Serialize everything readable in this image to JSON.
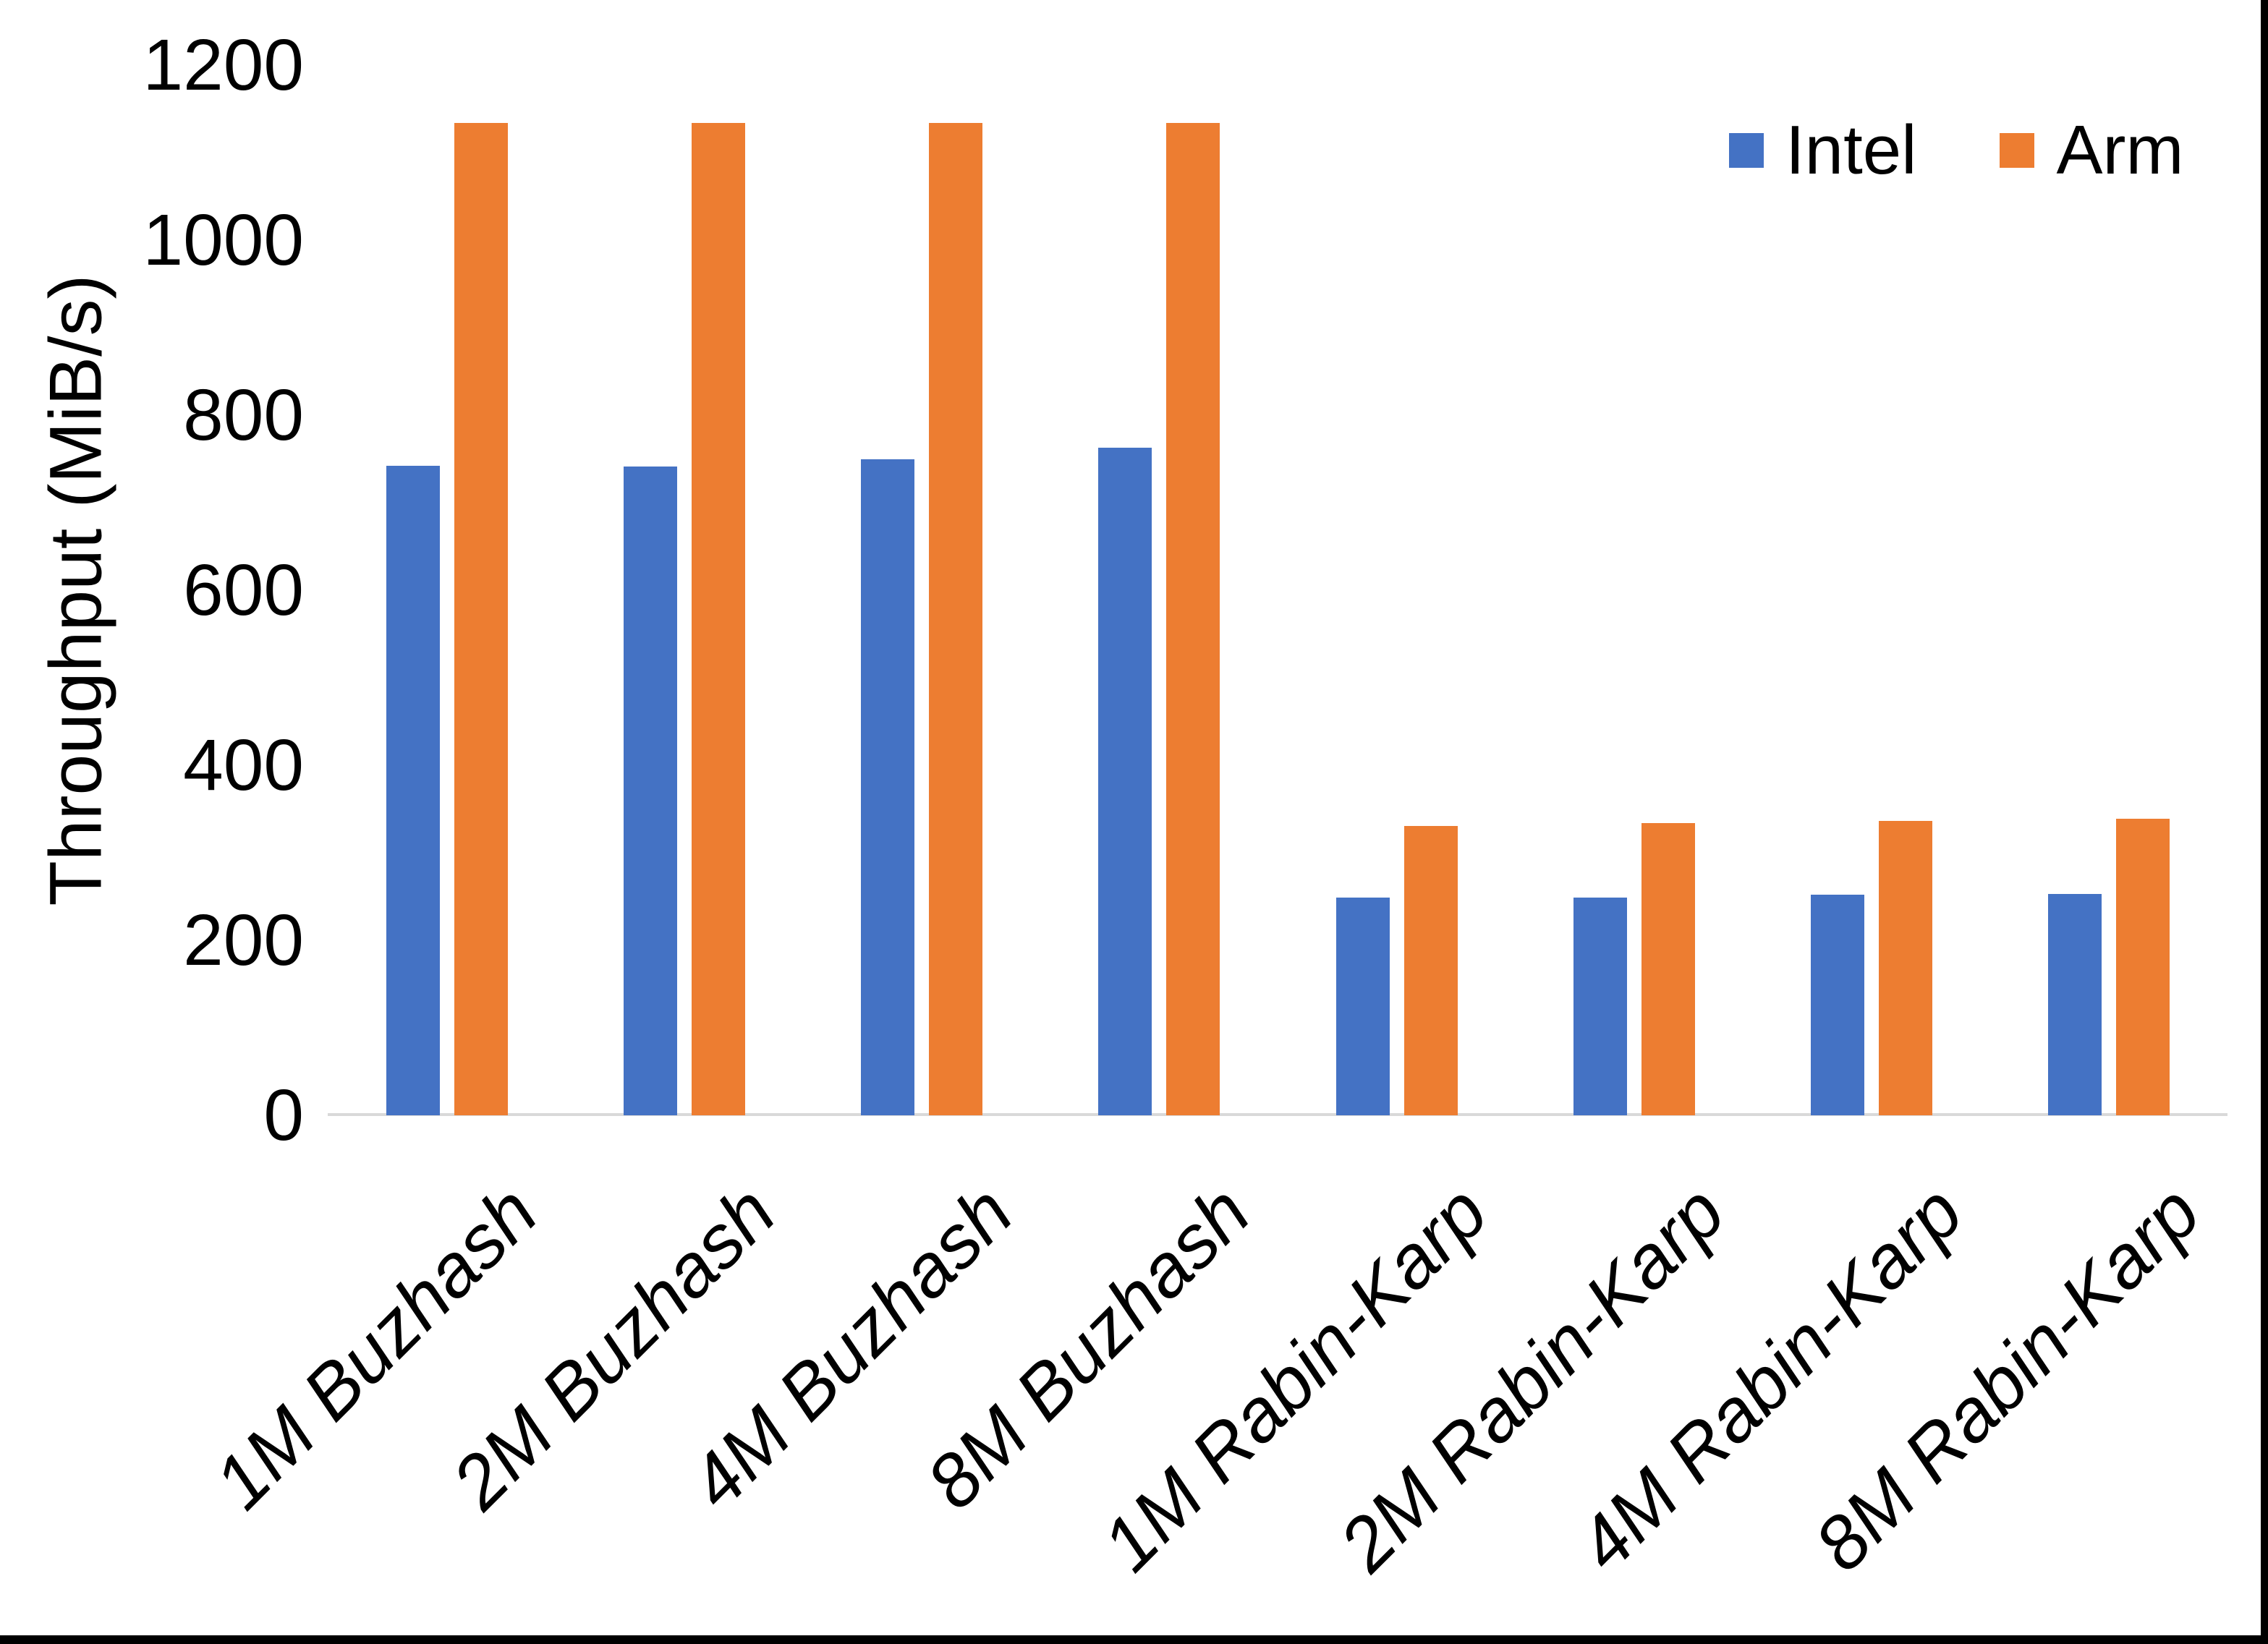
{
  "chart_data": {
    "type": "bar",
    "title": "",
    "xlabel": "",
    "ylabel": "Throughput (MiB/s)",
    "ylim": [
      0,
      1200
    ],
    "ytick_interval": 200,
    "yticks": [
      0,
      200,
      400,
      600,
      800,
      1000,
      1200
    ],
    "grid": "off",
    "legend_position": "top-right",
    "categories": [
      "1M Buzhash",
      "2M Buzhash",
      "4M Buzhash",
      "8M Buzhash",
      "1M Rabin-Karp",
      "2M Rabin-Karp",
      "4M Rabin-Karp",
      "8M Rabin-Karp"
    ],
    "series": [
      {
        "name": "Intel",
        "color": "#4472C4",
        "values": [
          742,
          741,
          750,
          763,
          249,
          249,
          252,
          253
        ]
      },
      {
        "name": "Arm",
        "color": "#ED7D31",
        "values": [
          1134,
          1134,
          1134,
          1134,
          331,
          334,
          336,
          339
        ]
      }
    ]
  },
  "axis": {
    "y_title": "Throughput (MiB/s)",
    "y_tick_labels": [
      "0",
      "200",
      "400",
      "600",
      "800",
      "1000",
      "1200"
    ]
  },
  "legend": {
    "items": [
      {
        "label": "Intel",
        "color": "#4472C4"
      },
      {
        "label": "Arm",
        "color": "#ED7D31"
      }
    ]
  },
  "colors": {
    "background": "#FFFFFF",
    "text": "#000000",
    "axis_line": "#D9D9D9",
    "border": "#000000",
    "intel_bar": "#4472C4",
    "arm_bar": "#ED7D31"
  }
}
